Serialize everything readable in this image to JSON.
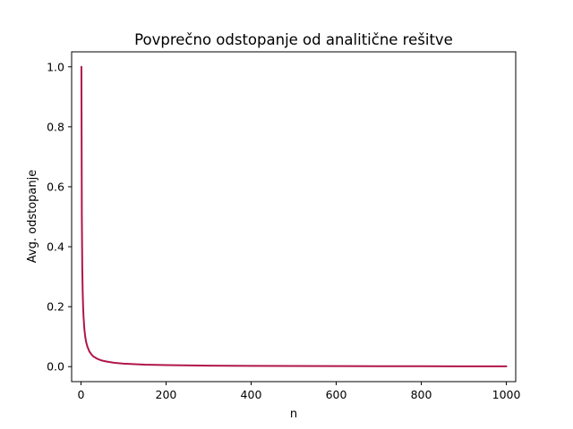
{
  "chart_data": {
    "type": "line",
    "title": "Povprečno odstopanje od analitične rešitve",
    "xlabel": "n",
    "ylabel": "Avg. odstopanje",
    "xlim": [
      -22,
      1022
    ],
    "ylim": [
      -0.05,
      1.05
    ],
    "x_ticks": [
      0,
      200,
      400,
      600,
      800,
      1000
    ],
    "x_tick_labels": [
      "0",
      "200",
      "400",
      "600",
      "800",
      "1000"
    ],
    "y_ticks": [
      0.0,
      0.2,
      0.4,
      0.6,
      0.8,
      1.0
    ],
    "y_tick_labels": [
      "0.0",
      "0.2",
      "0.4",
      "0.6",
      "0.8",
      "1.0"
    ],
    "grid": false,
    "series": [
      {
        "color": "#b0154a",
        "x": [
          1,
          2,
          3,
          4,
          5,
          6,
          8,
          10,
          12,
          15,
          20,
          25,
          30,
          40,
          50,
          60,
          80,
          100,
          150,
          200,
          300,
          400,
          500,
          600,
          700,
          800,
          900,
          1000
        ],
        "y": [
          1.0,
          0.5,
          0.333,
          0.25,
          0.2,
          0.167,
          0.125,
          0.1,
          0.083,
          0.067,
          0.05,
          0.04,
          0.033,
          0.025,
          0.02,
          0.017,
          0.0125,
          0.01,
          0.0067,
          0.005,
          0.0033,
          0.0025,
          0.002,
          0.0017,
          0.0014,
          0.0013,
          0.0011,
          0.001
        ]
      }
    ]
  }
}
